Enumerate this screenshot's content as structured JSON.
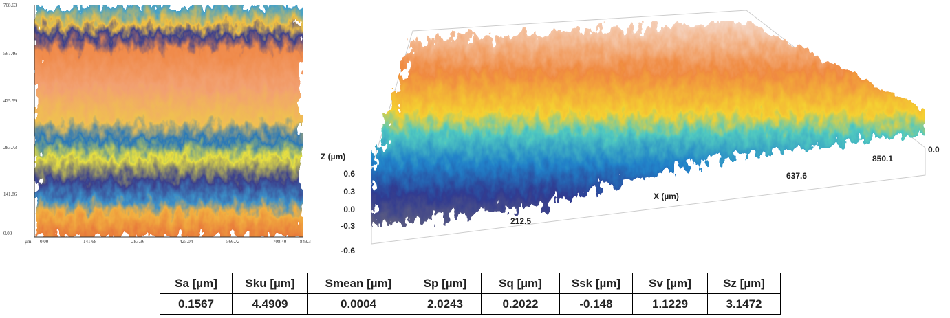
{
  "heatmap": {
    "yticks": [
      "708.63",
      "567.46",
      "425.59",
      "283.73",
      "141.86",
      "0.00"
    ],
    "unit": "µm",
    "xticks": [
      "0.00",
      "141.68",
      "283.36",
      "425.04",
      "566.72",
      "708.40",
      "849.3"
    ]
  },
  "surface": {
    "z_label": "Z (µm)",
    "zticks": [
      "0.6",
      "0.3",
      "0.0",
      "-0.3",
      "-0.6"
    ],
    "x_label": "X (µm)",
    "xticks": [
      "212.5",
      "637.6",
      "850.1"
    ],
    "y_tick": "0.0"
  },
  "table": {
    "headers": [
      "Sa [µm]",
      "Sku [µm]",
      "Smean [µm]",
      "Sp [µm]",
      "Sq [µm]",
      "Ssk [µm]",
      "Sv [µm]",
      "Sz [µm]"
    ],
    "rows": [
      [
        "0.1567",
        "4.4909",
        "0.0004",
        "2.0243",
        "0.2022",
        "-0.148",
        "1.1229",
        "3.1472"
      ]
    ]
  }
}
